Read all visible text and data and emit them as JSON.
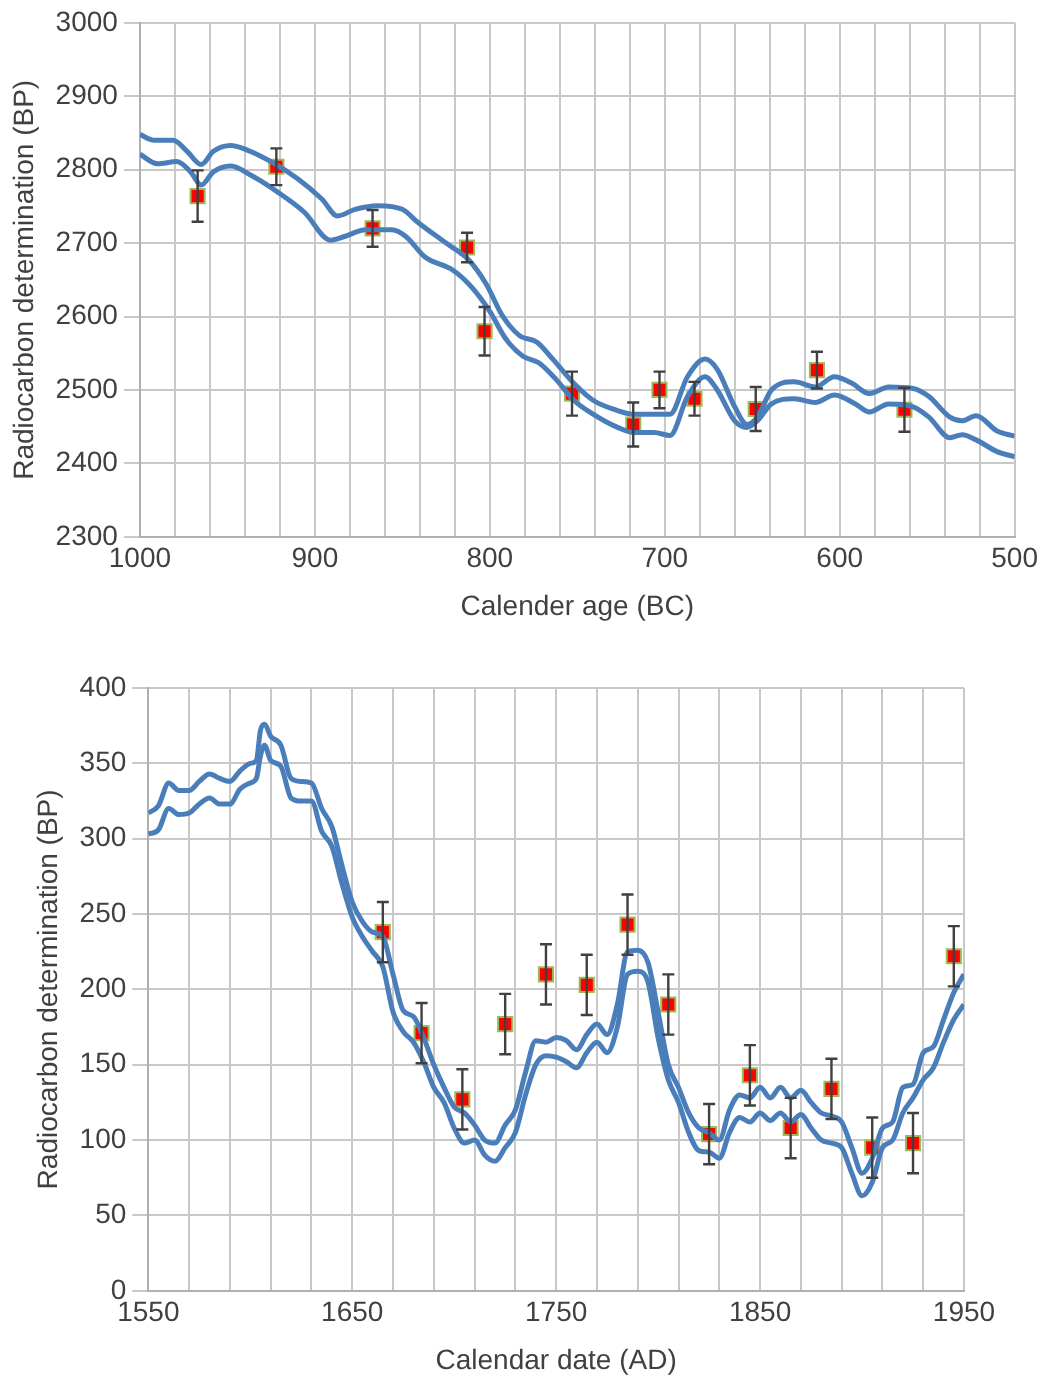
{
  "chart_data": [
    {
      "type": "line",
      "xlabel": "Calender age (BC)",
      "ylabel": "Radiocarbon determination (BP)",
      "xlim": [
        1000,
        500
      ],
      "ylim": [
        2300,
        3000
      ],
      "xticks": [
        1000,
        {
          "value": 980,
          "label": null
        },
        {
          "value": 960,
          "label": null
        },
        {
          "value": 940,
          "label": null
        },
        {
          "value": 920,
          "label": null
        },
        900,
        {
          "value": 880,
          "label": null
        },
        {
          "value": 860,
          "label": null
        },
        {
          "value": 840,
          "label": null
        },
        {
          "value": 820,
          "label": null
        },
        800,
        {
          "value": 780,
          "label": null
        },
        {
          "value": 760,
          "label": null
        },
        {
          "value": 740,
          "label": null
        },
        {
          "value": 720,
          "label": null
        },
        700,
        {
          "value": 680,
          "label": null
        },
        {
          "value": 660,
          "label": null
        },
        {
          "value": 640,
          "label": null
        },
        {
          "value": 620,
          "label": null
        },
        600,
        {
          "value": 580,
          "label": null
        },
        {
          "value": 560,
          "label": null
        },
        {
          "value": 540,
          "label": null
        },
        {
          "value": 520,
          "label": null
        },
        500
      ],
      "yticks": [
        2300,
        2400,
        2500,
        2600,
        2700,
        2800,
        2900,
        3000
      ],
      "grid": true,
      "legend": false,
      "series": [
        {
          "type": "line",
          "color": "#4a7ebb",
          "marker": "none",
          "x": [
            1000,
            992,
            981,
            973,
            965,
            958,
            948,
            939,
            925,
            910,
            896,
            887,
            877,
            864,
            850,
            841,
            825,
            812,
            802,
            793,
            783,
            773,
            764,
            752,
            741,
            727,
            718,
            706,
            697,
            687,
            677,
            670,
            660,
            653,
            647,
            639,
            626,
            614,
            603,
            593,
            583,
            572,
            558,
            549,
            537,
            530,
            522,
            510,
            500
          ],
          "values": [
            2848,
            2840,
            2840,
            2825,
            2807,
            2825,
            2833,
            2827,
            2811,
            2788,
            2760,
            2737,
            2746,
            2751,
            2746,
            2728,
            2700,
            2677,
            2644,
            2602,
            2574,
            2565,
            2542,
            2509,
            2486,
            2472,
            2467,
            2467,
            2467,
            2518,
            2542,
            2528,
            2477,
            2453,
            2463,
            2500,
            2511,
            2504,
            2518,
            2509,
            2495,
            2504,
            2502,
            2491,
            2463,
            2458,
            2465,
            2444,
            2437
          ]
        },
        {
          "type": "line",
          "color": "#4a7ebb",
          "marker": "none",
          "x": [
            1000,
            990,
            979,
            971,
            965,
            958,
            948,
            937,
            921,
            906,
            891,
            883,
            871,
            856,
            848,
            837,
            821,
            810,
            800,
            791,
            781,
            772,
            762,
            752,
            741,
            727,
            718,
            706,
            697,
            687,
            677,
            670,
            660,
            653,
            647,
            639,
            626,
            614,
            603,
            591,
            583,
            572,
            558,
            549,
            537,
            530,
            522,
            510,
            500
          ],
          "values": [
            2821,
            2808,
            2811,
            2797,
            2779,
            2797,
            2805,
            2793,
            2769,
            2742,
            2704,
            2709,
            2718,
            2718,
            2709,
            2681,
            2663,
            2639,
            2607,
            2570,
            2546,
            2537,
            2514,
            2486,
            2467,
            2449,
            2442,
            2442,
            2438,
            2491,
            2518,
            2500,
            2458,
            2449,
            2458,
            2481,
            2488,
            2483,
            2493,
            2481,
            2470,
            2481,
            2477,
            2463,
            2435,
            2439,
            2432,
            2416,
            2409
          ]
        },
        {
          "type": "scatter",
          "color": "#ff0000",
          "marker": "square",
          "x": [
            967,
            922,
            867,
            813,
            803,
            753,
            718,
            703,
            683,
            648,
            613,
            563
          ],
          "values": [
            2764,
            2804,
            2720,
            2694,
            2580,
            2495,
            2453,
            2500,
            2488,
            2474,
            2527,
            2473
          ],
          "errors": [
            35,
            25,
            25,
            20,
            33,
            30,
            30,
            25,
            23,
            30,
            25,
            30
          ]
        }
      ]
    },
    {
      "type": "line",
      "xlabel": "Calendar date (AD)",
      "ylabel": "Radiocarbon determination (BP)",
      "xlim": [
        1550,
        1950
      ],
      "ylim": [
        0,
        400
      ],
      "xticks": [
        1550,
        {
          "value": 1570,
          "label": null
        },
        {
          "value": 1590,
          "label": null
        },
        {
          "value": 1610,
          "label": null
        },
        {
          "value": 1630,
          "label": null
        },
        1650,
        {
          "value": 1670,
          "label": null
        },
        {
          "value": 1690,
          "label": null
        },
        {
          "value": 1710,
          "label": null
        },
        {
          "value": 1730,
          "label": null
        },
        1750,
        {
          "value": 1770,
          "label": null
        },
        {
          "value": 1790,
          "label": null
        },
        {
          "value": 1810,
          "label": null
        },
        {
          "value": 1830,
          "label": null
        },
        1850,
        {
          "value": 1870,
          "label": null
        },
        {
          "value": 1890,
          "label": null
        },
        {
          "value": 1910,
          "label": null
        },
        {
          "value": 1930,
          "label": null
        },
        1950
      ],
      "yticks": [
        0,
        50,
        100,
        150,
        200,
        250,
        300,
        350,
        400
      ],
      "grid": true,
      "legend": false,
      "series": [
        {
          "type": "line",
          "color": "#4a7ebb",
          "marker": "none",
          "x": [
            1550,
            1555,
            1560,
            1565,
            1570,
            1575,
            1580,
            1585,
            1590,
            1595,
            1600,
            1603,
            1605,
            1607,
            1610,
            1615,
            1620,
            1625,
            1630,
            1635,
            1640,
            1645,
            1650,
            1655,
            1660,
            1665,
            1670,
            1675,
            1680,
            1685,
            1690,
            1695,
            1700,
            1705,
            1710,
            1715,
            1720,
            1725,
            1730,
            1735,
            1740,
            1745,
            1750,
            1755,
            1760,
            1765,
            1770,
            1775,
            1780,
            1785,
            1790,
            1795,
            1800,
            1805,
            1810,
            1815,
            1820,
            1825,
            1830,
            1835,
            1840,
            1845,
            1850,
            1855,
            1860,
            1865,
            1870,
            1875,
            1880,
            1885,
            1890,
            1895,
            1900,
            1905,
            1910,
            1915,
            1920,
            1925,
            1930,
            1935,
            1940,
            1945,
            1950
          ],
          "values": [
            317,
            322,
            337,
            332,
            332,
            338,
            343,
            340,
            338,
            345,
            350,
            352,
            372,
            376,
            368,
            362,
            340,
            338,
            337,
            320,
            308,
            282,
            258,
            245,
            238,
            235,
            210,
            186,
            182,
            168,
            150,
            135,
            122,
            118,
            110,
            100,
            98,
            110,
            120,
            145,
            166,
            165,
            168,
            166,
            160,
            170,
            177,
            170,
            190,
            225,
            226,
            218,
            185,
            150,
            135,
            118,
            108,
            105,
            100,
            120,
            130,
            128,
            135,
            128,
            135,
            128,
            133,
            125,
            118,
            116,
            112,
            95,
            78,
            88,
            108,
            112,
            135,
            137,
            158,
            162,
            180,
            198,
            210
          ]
        },
        {
          "type": "line",
          "color": "#4a7ebb",
          "marker": "none",
          "x": [
            1550,
            1555,
            1560,
            1565,
            1570,
            1575,
            1580,
            1585,
            1590,
            1595,
            1600,
            1603,
            1605,
            1607,
            1610,
            1615,
            1620,
            1625,
            1630,
            1635,
            1640,
            1645,
            1650,
            1655,
            1660,
            1665,
            1670,
            1675,
            1680,
            1685,
            1690,
            1695,
            1700,
            1705,
            1710,
            1715,
            1720,
            1725,
            1730,
            1735,
            1740,
            1745,
            1750,
            1755,
            1760,
            1765,
            1770,
            1775,
            1780,
            1785,
            1790,
            1795,
            1800,
            1805,
            1810,
            1815,
            1820,
            1825,
            1830,
            1835,
            1840,
            1845,
            1850,
            1855,
            1860,
            1865,
            1870,
            1875,
            1880,
            1885,
            1890,
            1895,
            1900,
            1905,
            1910,
            1915,
            1920,
            1925,
            1930,
            1935,
            1940,
            1945,
            1950
          ],
          "values": [
            303,
            306,
            320,
            316,
            317,
            323,
            327,
            323,
            323,
            333,
            337,
            340,
            355,
            362,
            352,
            348,
            327,
            325,
            325,
            305,
            295,
            270,
            248,
            235,
            225,
            215,
            185,
            172,
            165,
            152,
            135,
            125,
            108,
            98,
            100,
            90,
            86,
            95,
            105,
            130,
            150,
            156,
            155,
            152,
            148,
            158,
            165,
            158,
            175,
            210,
            212,
            205,
            168,
            140,
            125,
            105,
            93,
            92,
            88,
            105,
            115,
            112,
            118,
            113,
            118,
            112,
            117,
            108,
            100,
            98,
            95,
            78,
            63,
            72,
            95,
            100,
            118,
            128,
            140,
            148,
            165,
            180,
            190
          ]
        },
        {
          "type": "scatter",
          "color": "#ff0000",
          "marker": "square",
          "x": [
            1665,
            1684,
            1704,
            1725,
            1745,
            1765,
            1785,
            1805,
            1825,
            1845,
            1865,
            1885,
            1905,
            1925,
            1945
          ],
          "values": [
            238,
            171,
            127,
            177,
            210,
            203,
            243,
            190,
            104,
            143,
            108,
            134,
            95,
            98,
            222
          ],
          "errors": [
            20,
            20,
            20,
            20,
            20,
            20,
            20,
            20,
            20,
            20,
            20,
            20,
            20,
            20,
            20
          ]
        }
      ]
    }
  ]
}
